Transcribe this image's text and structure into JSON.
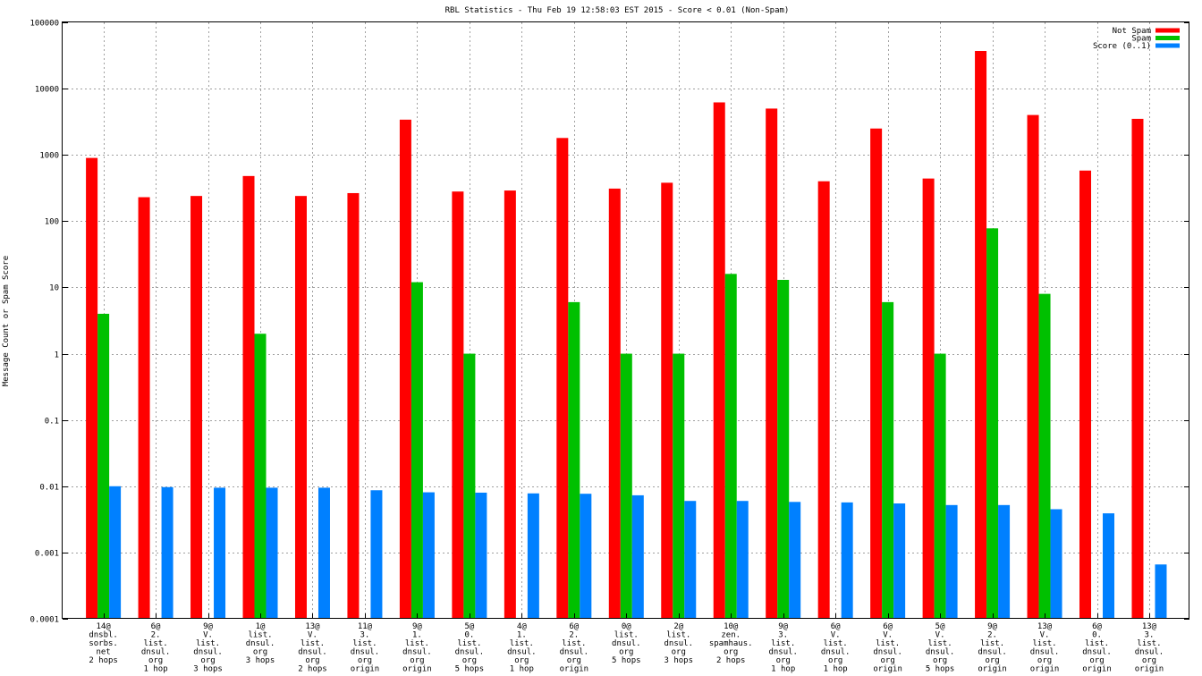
{
  "chart_data": {
    "type": "bar",
    "title": "RBL Statistics - Thu Feb 19 12:58:03 EST 2015 - Score < 0.01 (Non-Spam)",
    "xlabel": "",
    "ylabel": "Message Count or Spam Score",
    "yscale": "log",
    "ylim": [
      0.0001,
      100000
    ],
    "yticks": [
      "0.0001",
      "0.001",
      "0.01",
      "0.1",
      "1",
      "10",
      "100",
      "1000",
      "10000",
      "100000"
    ],
    "grid": true,
    "legend_position": "top-right",
    "categories": [
      [
        "14@",
        "dnsbl.",
        "sorbs.",
        "net",
        "2 hops"
      ],
      [
        "6@",
        "2.",
        "list.",
        "dnsul.",
        "org",
        "1 hop"
      ],
      [
        "9@",
        "V.",
        "list.",
        "dnsul.",
        "org",
        "3 hops"
      ],
      [
        "1@",
        "list.",
        "dnsul.",
        "org",
        "3 hops"
      ],
      [
        "13@",
        "V.",
        "list.",
        "dnsul.",
        "org",
        "2 hops"
      ],
      [
        "11@",
        "3.",
        "list.",
        "dnsul.",
        "org",
        "origin"
      ],
      [
        "9@",
        "1.",
        "list.",
        "dnsul.",
        "org",
        "origin"
      ],
      [
        "5@",
        "0.",
        "list.",
        "dnsul.",
        "org",
        "5 hops"
      ],
      [
        "4@",
        "1.",
        "list.",
        "dnsul.",
        "org",
        "1 hop"
      ],
      [
        "6@",
        "2.",
        "list.",
        "dnsul.",
        "org",
        "origin"
      ],
      [
        "0@",
        "list.",
        "dnsul.",
        "org",
        "5 hops"
      ],
      [
        "2@",
        "list.",
        "dnsul.",
        "org",
        "3 hops"
      ],
      [
        "10@",
        "zen.",
        "spamhaus.",
        "org",
        "2 hops"
      ],
      [
        "9@",
        "3.",
        "list.",
        "dnsul.",
        "org",
        "1 hop"
      ],
      [
        "6@",
        "V.",
        "list.",
        "dnsul.",
        "org",
        "1 hop"
      ],
      [
        "6@",
        "V.",
        "list.",
        "dnsul.",
        "org",
        "origin"
      ],
      [
        "5@",
        "V.",
        "list.",
        "dnsul.",
        "org",
        "5 hops"
      ],
      [
        "9@",
        "2.",
        "list.",
        "dnsul.",
        "org",
        "origin"
      ],
      [
        "13@",
        "V.",
        "list.",
        "dnsul.",
        "org",
        "origin"
      ],
      [
        "6@",
        "0.",
        "list.",
        "dnsul.",
        "org",
        "origin"
      ],
      [
        "13@",
        "3.",
        "list.",
        "dnsul.",
        "org",
        "origin"
      ]
    ],
    "series": [
      {
        "name": "Not Spam",
        "color": "#ff0000",
        "values": [
          900,
          230,
          240,
          480,
          240,
          265,
          3400,
          280,
          290,
          1800,
          310,
          380,
          6200,
          5000,
          400,
          2500,
          440,
          37000,
          4000,
          580,
          3500
        ]
      },
      {
        "name": "Spam",
        "color": "#00c000",
        "values": [
          4,
          0,
          0,
          2,
          0,
          0,
          12,
          1,
          0,
          6,
          1,
          1,
          16,
          13,
          0,
          6,
          1,
          78,
          8,
          0,
          0
        ]
      },
      {
        "name": "Score (0..1)",
        "color": "#0080ff",
        "values": [
          0.01,
          0.0097,
          0.0095,
          0.0095,
          0.0095,
          0.0087,
          0.0081,
          0.008,
          0.0078,
          0.0077,
          0.0073,
          0.006,
          0.006,
          0.0058,
          0.0057,
          0.0055,
          0.0052,
          0.0052,
          0.0045,
          0.0039,
          0.00066
        ]
      }
    ]
  }
}
